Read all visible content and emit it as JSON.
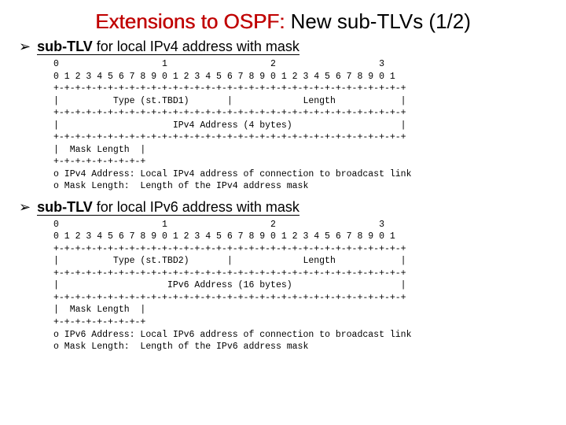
{
  "title": {
    "highlight": "Extensions to OSPF: ",
    "rest": "New sub-TLVs (1/2)"
  },
  "sections": [
    {
      "bullet": "➢",
      "label_bold": "sub-TLV",
      "label_rest": " for local IPv4 address with mask",
      "diagram": "0                   1                   2                   3\n0 1 2 3 4 5 6 7 8 9 0 1 2 3 4 5 6 7 8 9 0 1 2 3 4 5 6 7 8 9 0 1\n+-+-+-+-+-+-+-+-+-+-+-+-+-+-+-+-+-+-+-+-+-+-+-+-+-+-+-+-+-+-+-+-+\n|          Type (st.TBD1)       |             Length            |\n+-+-+-+-+-+-+-+-+-+-+-+-+-+-+-+-+-+-+-+-+-+-+-+-+-+-+-+-+-+-+-+-+\n|                     IPv4 Address (4 bytes)                    |\n+-+-+-+-+-+-+-+-+-+-+-+-+-+-+-+-+-+-+-+-+-+-+-+-+-+-+-+-+-+-+-+-+\n|  Mask Length  |\n+-+-+-+-+-+-+-+-+\no IPv4 Address: Local IPv4 address of connection to broadcast link\no Mask Length:  Length of the IPv4 address mask"
    },
    {
      "bullet": "➢",
      "label_bold": "sub-TLV",
      "label_rest": " for local IPv6 address with mask",
      "diagram": "0                   1                   2                   3\n0 1 2 3 4 5 6 7 8 9 0 1 2 3 4 5 6 7 8 9 0 1 2 3 4 5 6 7 8 9 0 1\n+-+-+-+-+-+-+-+-+-+-+-+-+-+-+-+-+-+-+-+-+-+-+-+-+-+-+-+-+-+-+-+-+\n|          Type (st.TBD2)       |             Length            |\n+-+-+-+-+-+-+-+-+-+-+-+-+-+-+-+-+-+-+-+-+-+-+-+-+-+-+-+-+-+-+-+-+\n|                    IPv6 Address (16 bytes)                    |\n+-+-+-+-+-+-+-+-+-+-+-+-+-+-+-+-+-+-+-+-+-+-+-+-+-+-+-+-+-+-+-+-+\n|  Mask Length  |\n+-+-+-+-+-+-+-+-+\no IPv6 Address: Local IPv6 address of connection to broadcast link\no Mask Length:  Length of the IPv6 address mask"
    }
  ]
}
